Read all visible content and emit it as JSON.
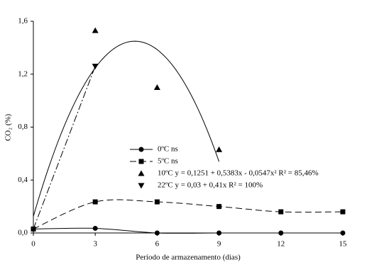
{
  "chart_data": {
    "type": "line",
    "x_label": "Período de armazenamento (dias)",
    "y_label": "CO₂ (%)",
    "xlim": [
      0,
      15
    ],
    "xticks": [
      0,
      3,
      6,
      9,
      12,
      15
    ],
    "ylim": [
      0,
      1.6
    ],
    "yticks": [
      {
        "value": 0,
        "label": "0,0"
      },
      {
        "value": 0.4,
        "label": "0,4"
      },
      {
        "value": 0.8,
        "label": "0,8"
      },
      {
        "value": 1.2,
        "label": "1,2"
      },
      {
        "value": 1.6,
        "label": "1,6"
      }
    ],
    "series": [
      {
        "name": "0ºC ns",
        "marker": "circle",
        "color": "#000000",
        "linestyle": "solid",
        "x": [
          0,
          3,
          6,
          9,
          12,
          15
        ],
        "values": [
          0.03,
          0.035,
          0.0,
          0.0,
          0.0,
          0.0
        ]
      },
      {
        "name": "5ºC ns",
        "marker": "square",
        "color": "#000000",
        "linestyle": "dashed",
        "x": [
          0,
          3,
          6,
          9,
          12,
          15
        ],
        "values": [
          0.03,
          0.235,
          0.235,
          0.2,
          0.16,
          0.16
        ]
      },
      {
        "name": "10ºC y = 0,1251 + 0,5383x - 0,0547x²  R² = 85,46%",
        "marker": "triangle-up",
        "color": "#000000",
        "x": [
          3,
          6,
          9
        ],
        "values": [
          1.53,
          1.1,
          0.63
        ],
        "fit": {
          "coefficients": [
            0.1251,
            0.5383,
            -0.0547
          ],
          "xrange": [
            0,
            9
          ],
          "linestyle": "solid"
        }
      },
      {
        "name": "22ºC y = 0,03 + 0,41x  R² = 100%",
        "marker": "triangle-down",
        "color": "#000000",
        "x": [
          3
        ],
        "values": [
          1.26
        ],
        "fit": {
          "coefficients": [
            0.03,
            0.41
          ],
          "xrange": [
            0,
            3
          ],
          "linestyle": "dashdot"
        }
      }
    ]
  }
}
